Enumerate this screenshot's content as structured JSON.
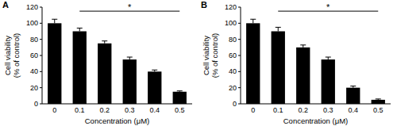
{
  "chart_data": [
    {
      "type": "bar",
      "title": "A",
      "categories": [
        "0",
        "0.1",
        "0.2",
        "0.3",
        "0.4",
        "0.5"
      ],
      "values": [
        100,
        90,
        75,
        55,
        40,
        15
      ],
      "errors": [
        5,
        4,
        3,
        3,
        2,
        1
      ],
      "color": "#000000",
      "ylim": [
        0,
        120
      ],
      "yticks": [
        0,
        20,
        40,
        60,
        80,
        100,
        120
      ],
      "ylabel": [
        "Cell viability",
        "(% of control)"
      ],
      "xlabel": "Concentration (μM)",
      "annotation": {
        "text": "*",
        "from": "0.1",
        "to": "0.5",
        "y": 115
      }
    },
    {
      "type": "bar",
      "title": "B",
      "categories": [
        "0",
        "0.1",
        "0.2",
        "0.3",
        "0.4",
        "0.5"
      ],
      "values": [
        100,
        90,
        70,
        55,
        20,
        5
      ],
      "errors": [
        5,
        5,
        3,
        3,
        2,
        1
      ],
      "color": "#000000",
      "ylim": [
        0,
        120
      ],
      "yticks": [
        0,
        20,
        40,
        60,
        80,
        100,
        120
      ],
      "ylabel": [
        "Cell viability",
        "(% of control)"
      ],
      "xlabel": "Concentration (μM)",
      "annotation": {
        "text": "*",
        "from": "0.1",
        "to": "0.5",
        "y": 115
      }
    }
  ]
}
